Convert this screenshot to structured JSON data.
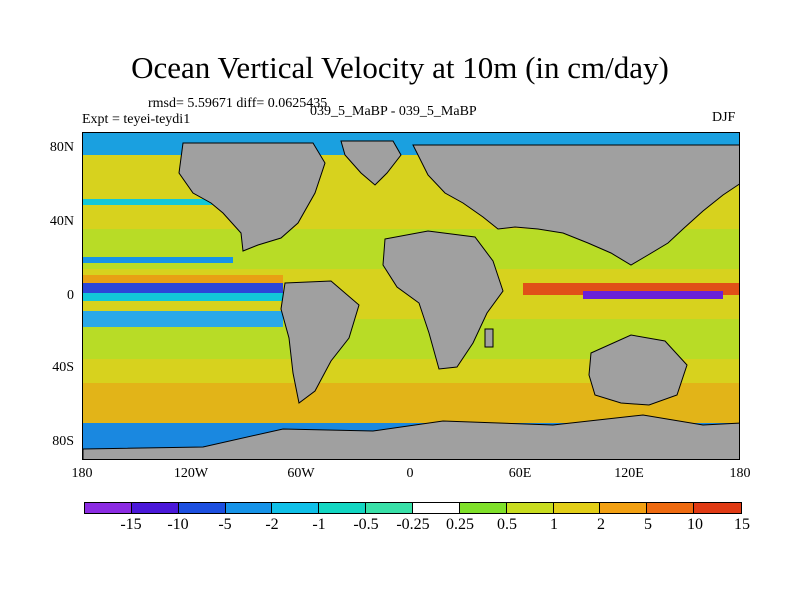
{
  "title": "Ocean Vertical Velocity at 10m (in cm/day)",
  "stats": "rmsd= 5.59671 diff= 0.0625435",
  "experiment": "Expt = teyei-teydi1",
  "comparison": "039_5_MaBP - 039_5_MaBP",
  "season": "DJF",
  "lat_labels": [
    "80N",
    "40N",
    "0",
    "40S",
    "80S"
  ],
  "lon_labels": [
    "180",
    "120W",
    "60W",
    "0",
    "60E",
    "120E",
    "180"
  ],
  "colorbar": {
    "labels": [
      "-15",
      "-10",
      "-5",
      "-2",
      "-1",
      "-0.5",
      "-0.25",
      "0.25",
      "0.5",
      "1",
      "2",
      "5",
      "10",
      "15"
    ],
    "colors": [
      "#8b2be2",
      "#4a18d9",
      "#1c4fe0",
      "#1693e8",
      "#10c0e8",
      "#12d6c2",
      "#38e0a8",
      "#ffffff",
      "#7fe02a",
      "#c8dc20",
      "#e2ce18",
      "#f2a012",
      "#ee6a10",
      "#e03a14"
    ]
  },
  "colors": {
    "land": "#a0a0a0",
    "ocean_base": "#d7d21e"
  }
}
